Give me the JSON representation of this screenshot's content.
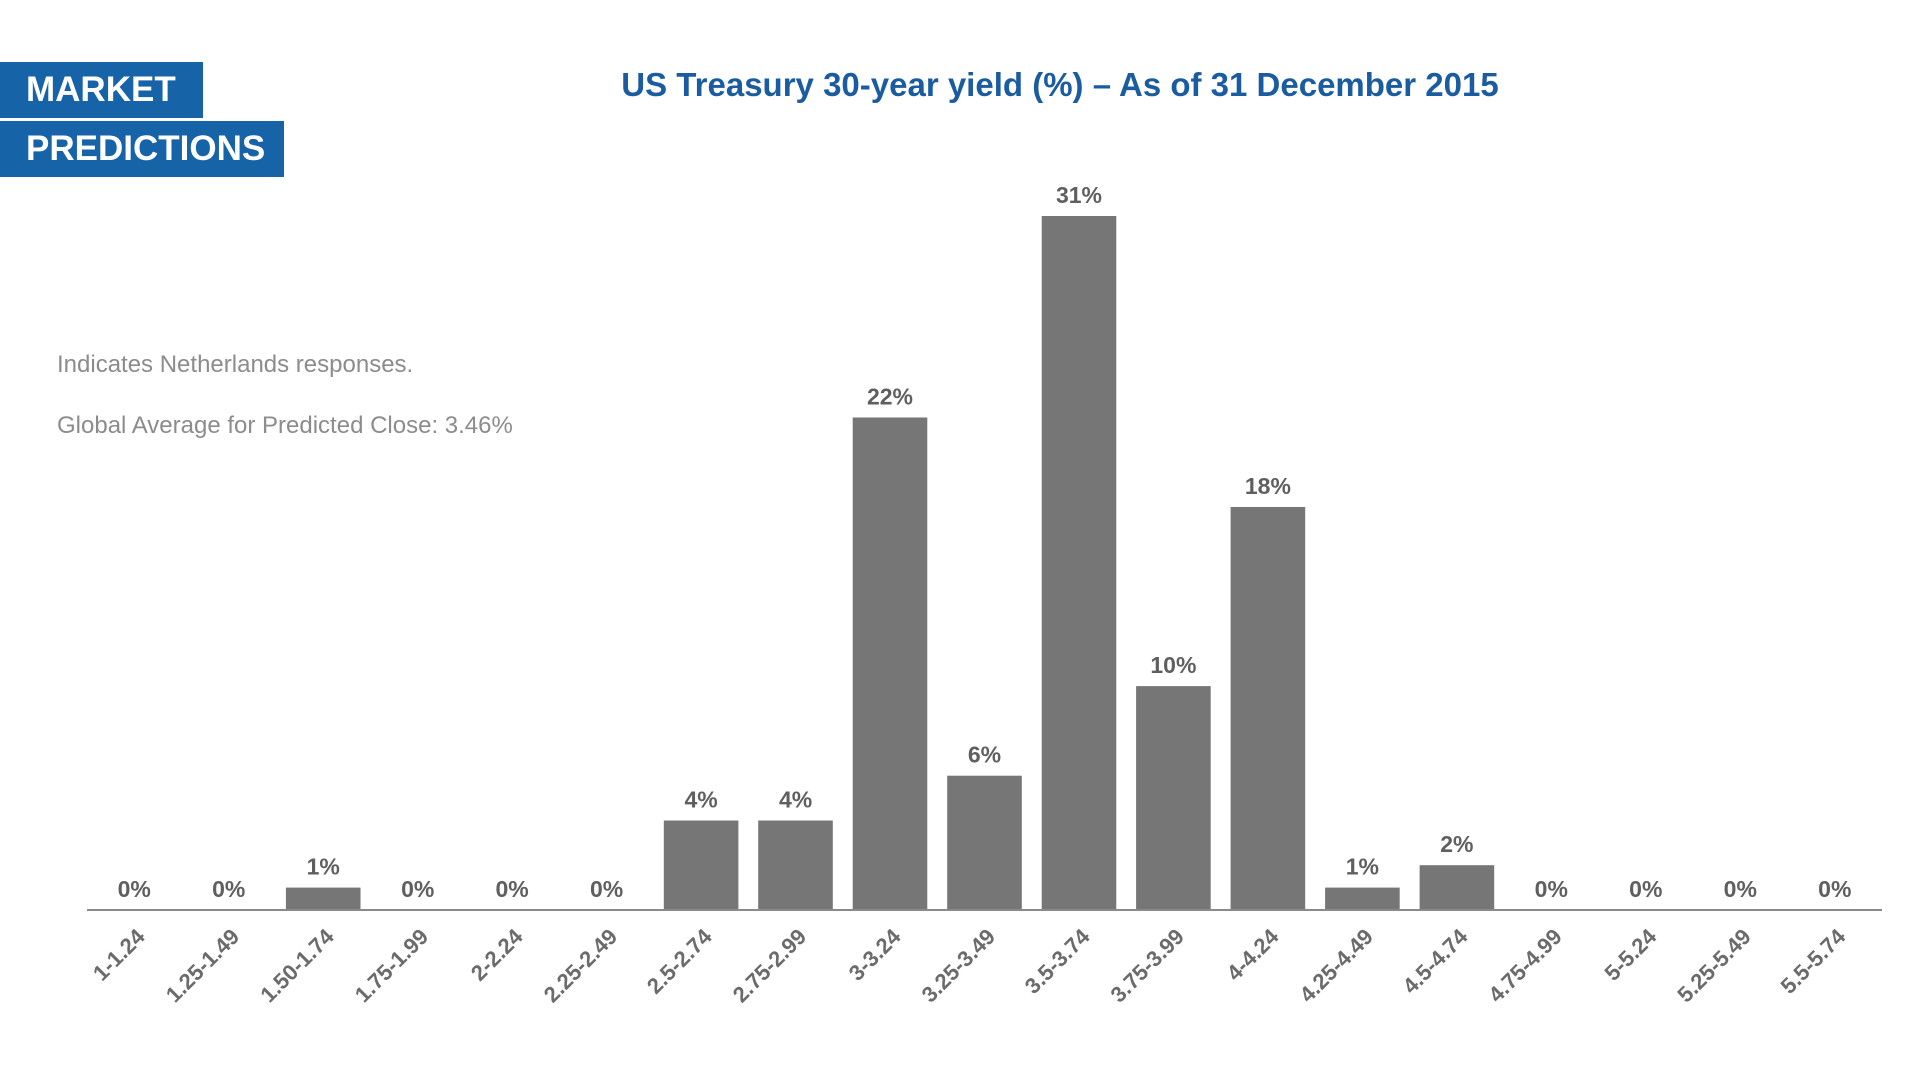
{
  "tags": {
    "market": "MARKET",
    "predictions": "PREDICTIONS"
  },
  "colors": {
    "tag_background": "#1763a8",
    "title": "#1a5c9f",
    "bar": "#767676",
    "note_text": "#8c8c8c"
  },
  "notes": {
    "line1": "Indicates Netherlands responses.",
    "line2": "Global Average for Predicted Close: 3.46%"
  },
  "chart_data": {
    "type": "bar",
    "title": "US Treasury 30-year yield (%) – As of 31 December 2015",
    "xlabel": "",
    "ylabel": "",
    "ylim": [
      0,
      31
    ],
    "grid": false,
    "legend": "none",
    "categories": [
      "1-1.24",
      "1.25-1.49",
      "1.50-1.74",
      "1.75-1.99",
      "2-2.24",
      "2.25-2.49",
      "2.5-2.74",
      "2.75-2.99",
      "3-3.24",
      "3.25-3.49",
      "3.5-3.74",
      "3.75-3.99",
      "4-4.24",
      "4.25-4.49",
      "4.5-4.74",
      "4.75-4.99",
      "5-5.24",
      "5.25-5.49",
      "5.5-5.74"
    ],
    "values": [
      0,
      0,
      1,
      0,
      0,
      0,
      4,
      4,
      22,
      6,
      31,
      10,
      18,
      1,
      2,
      0,
      0,
      0,
      0
    ],
    "data_labels": [
      "0%",
      "0%",
      "1%",
      "0%",
      "0%",
      "0%",
      "4%",
      "4%",
      "22%",
      "6%",
      "31%",
      "10%",
      "18%",
      "1%",
      "2%",
      "0%",
      "0%",
      "0%",
      "0%"
    ]
  }
}
